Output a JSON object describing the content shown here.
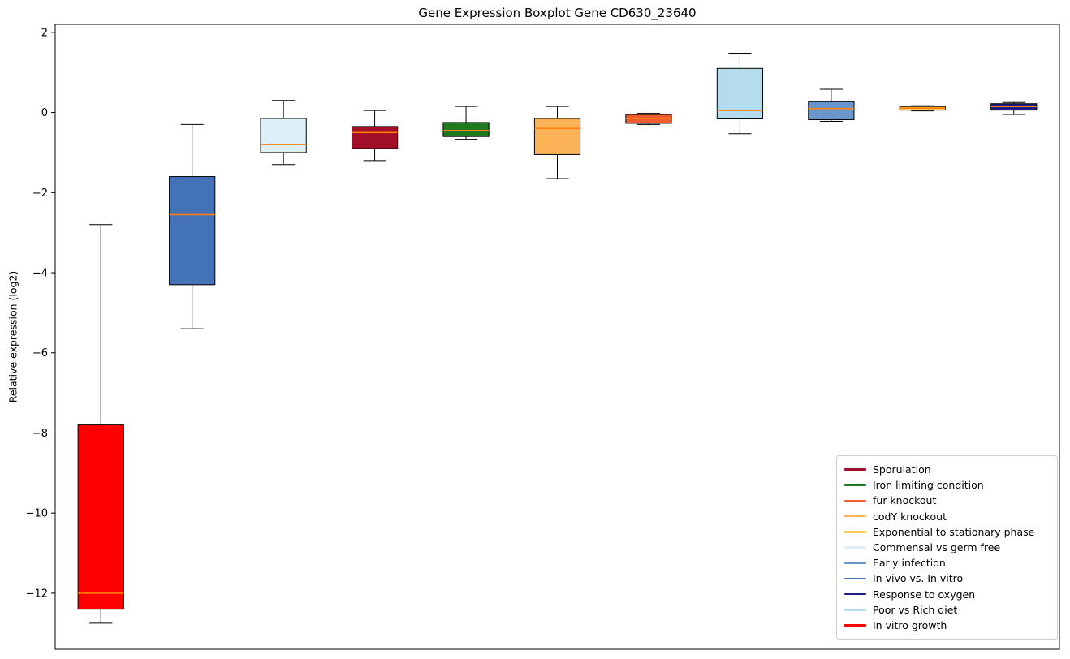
{
  "chart_data": {
    "type": "boxplot",
    "title": "Gene Expression Boxplot Gene CD630_23640",
    "xlabel": "",
    "ylabel": "Relative expression (log2)",
    "ylim": [
      -13.4,
      2.2
    ],
    "yticks": [
      2,
      0,
      -2,
      -4,
      -6,
      -8,
      -10,
      -12
    ],
    "grid": false,
    "median_color": "#ff7f0e",
    "box_edge_color": "#000000",
    "whisker_color": "#000000",
    "legend_position": "lower right",
    "series": [
      {
        "label": "In vitro growth",
        "color": "#ff0000",
        "whisker_low": -12.75,
        "q1": -12.4,
        "median": -12.0,
        "q3": -7.8,
        "whisker_high": -2.8
      },
      {
        "label": "In vivo vs. In vitro",
        "color": "#4472b8",
        "whisker_low": -5.4,
        "q1": -4.3,
        "median": -2.55,
        "q3": -1.6,
        "whisker_high": -0.3
      },
      {
        "label": "Commensal vs germ free",
        "color": "#ddf0f8",
        "whisker_low": -1.3,
        "q1": -1.0,
        "median": -0.8,
        "q3": -0.15,
        "whisker_high": 0.3
      },
      {
        "label": "Sporulation",
        "color": "#a00e28",
        "whisker_low": -1.2,
        "q1": -0.9,
        "median": -0.5,
        "q3": -0.35,
        "whisker_high": 0.05
      },
      {
        "label": "Iron limiting condition",
        "color": "#1f7a1f",
        "whisker_low": -0.67,
        "q1": -0.6,
        "median": -0.45,
        "q3": -0.25,
        "whisker_high": 0.15
      },
      {
        "label": "codY knockout",
        "color": "#fcb257",
        "whisker_low": -1.65,
        "q1": -1.05,
        "median": -0.4,
        "q3": -0.15,
        "whisker_high": 0.15
      },
      {
        "label": "fur knockout",
        "color": "#ee5c30",
        "whisker_low": -0.3,
        "q1": -0.27,
        "median": -0.15,
        "q3": -0.05,
        "whisker_high": -0.02
      },
      {
        "label": "Poor vs Rich diet",
        "color": "#b5dcec",
        "whisker_low": -0.53,
        "q1": -0.16,
        "median": 0.05,
        "q3": 1.1,
        "whisker_high": 1.48
      },
      {
        "label": "Early infection",
        "color": "#6a97cb",
        "whisker_low": -0.22,
        "q1": -0.18,
        "median": 0.1,
        "q3": 0.27,
        "whisker_high": 0.58
      },
      {
        "label": "Exponential to stationary phase",
        "color": "#ffc84e",
        "whisker_low": 0.04,
        "q1": 0.06,
        "median": 0.11,
        "q3": 0.15,
        "whisker_high": 0.17
      },
      {
        "label": "Response to oxygen",
        "color": "#1c1c84",
        "whisker_low": -0.05,
        "q1": 0.06,
        "median": 0.15,
        "q3": 0.22,
        "whisker_high": 0.25
      }
    ],
    "legend_order": [
      "Sporulation",
      "Iron limiting condition",
      "fur knockout",
      "codY knockout",
      "Exponential to stationary phase",
      "Commensal vs germ free",
      "Early infection",
      "In vivo vs. In vitro",
      "Response to oxygen",
      "Poor vs Rich diet",
      "In vitro growth"
    ]
  }
}
